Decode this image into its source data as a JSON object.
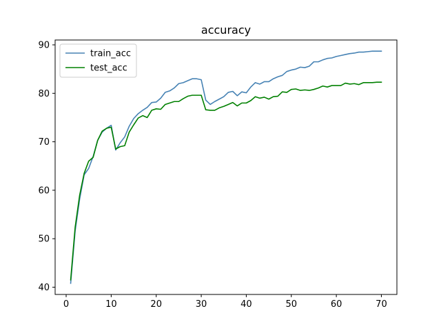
{
  "chart_data": {
    "type": "line",
    "title": "accuracy",
    "xlabel": "",
    "ylabel": "",
    "xlim": [
      -2.45,
      73.45
    ],
    "ylim": [
      38.5,
      91.0
    ],
    "xticks": [
      0,
      10,
      20,
      30,
      40,
      50,
      60,
      70
    ],
    "yticks": [
      40,
      50,
      60,
      70,
      80,
      90
    ],
    "grid": false,
    "legend_position": "top-left",
    "x": [
      1,
      2,
      3,
      4,
      5,
      6,
      7,
      8,
      9,
      10,
      11,
      12,
      13,
      14,
      15,
      16,
      17,
      18,
      19,
      20,
      21,
      22,
      23,
      24,
      25,
      26,
      27,
      28,
      29,
      30,
      31,
      32,
      33,
      34,
      35,
      36,
      37,
      38,
      39,
      40,
      41,
      42,
      43,
      44,
      45,
      46,
      47,
      48,
      49,
      50,
      51,
      52,
      53,
      54,
      55,
      56,
      57,
      58,
      59,
      60,
      61,
      62,
      63,
      64,
      65,
      66,
      67,
      68,
      69,
      70
    ],
    "series": [
      {
        "name": "train_acc",
        "color": "#4682b4",
        "values": [
          40.8,
          51.6,
          58.2,
          63.2,
          64.5,
          67.0,
          70.3,
          72.0,
          72.8,
          73.4,
          68.3,
          69.8,
          71.0,
          73.2,
          74.8,
          75.8,
          76.5,
          77.1,
          78.1,
          78.2,
          79.0,
          80.2,
          80.5,
          81.1,
          82.0,
          82.2,
          82.6,
          83.0,
          83.0,
          82.8,
          78.6,
          77.7,
          78.3,
          78.8,
          79.3,
          80.2,
          80.4,
          79.5,
          80.3,
          80.1,
          81.3,
          82.2,
          81.9,
          82.4,
          82.4,
          83.0,
          83.4,
          83.7,
          84.5,
          84.8,
          85.0,
          85.4,
          85.3,
          85.6,
          86.5,
          86.5,
          86.9,
          87.2,
          87.3,
          87.6,
          87.8,
          88.0,
          88.2,
          88.3,
          88.5,
          88.5,
          88.6,
          88.7,
          88.7,
          88.7
        ]
      },
      {
        "name": "test_acc",
        "color": "#008000",
        "values": [
          41.5,
          52.4,
          59.0,
          63.5,
          66.0,
          66.8,
          70.3,
          72.2,
          72.8,
          73.0,
          68.5,
          69.0,
          69.2,
          72.0,
          73.5,
          74.9,
          75.4,
          75.0,
          76.5,
          76.8,
          76.7,
          77.7,
          78.0,
          78.3,
          78.3,
          78.9,
          79.4,
          79.6,
          79.6,
          79.6,
          76.6,
          76.5,
          76.5,
          77.0,
          77.3,
          77.7,
          78.1,
          77.4,
          78.0,
          78.0,
          78.5,
          79.3,
          79.0,
          79.2,
          78.8,
          79.3,
          79.4,
          80.3,
          80.2,
          80.8,
          80.9,
          80.6,
          80.7,
          80.6,
          80.8,
          81.1,
          81.5,
          81.3,
          81.6,
          81.6,
          81.6,
          82.1,
          81.9,
          82.0,
          81.8,
          82.2,
          82.2,
          82.2,
          82.3,
          82.3
        ]
      }
    ]
  }
}
